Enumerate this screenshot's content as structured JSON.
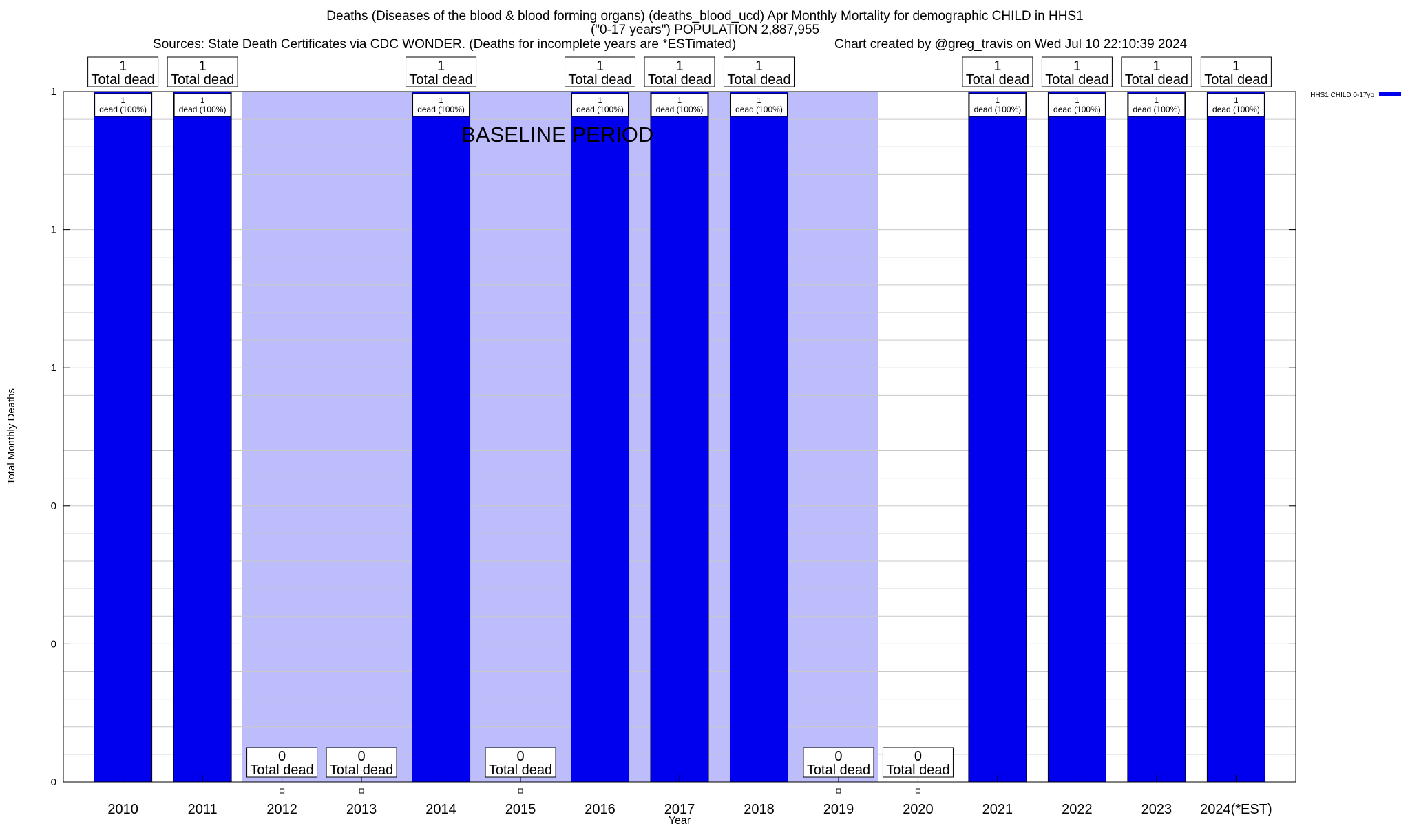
{
  "chart_data": {
    "type": "bar",
    "title": "Deaths (Diseases of the blood & blood forming organs) (deaths_blood_ucd) Apr Monthly Mortality for demographic CHILD in HHS1",
    "subtitle": "(\"0-17 years\") POPULATION 2,887,955",
    "sources": "Sources: State Death Certificates via CDC WONDER. (Deaths for incomplete years are *ESTimated)",
    "credit": "Chart created by @greg_travis on Wed Jul 10 22:10:39 2024",
    "xlabel": "Year",
    "ylabel": "Total Monthly Deaths",
    "ylim": [
      0,
      1
    ],
    "ytick_labels": [
      "0",
      "0",
      "0",
      "1",
      "1",
      "1"
    ],
    "categories": [
      "2010",
      "2011",
      "2012",
      "2013",
      "2014",
      "2015",
      "2016",
      "2017",
      "2018",
      "2019",
      "2020",
      "2021",
      "2022",
      "2023",
      "2024(*EST)"
    ],
    "series": [
      {
        "name": "HHS1 CHILD 0-17yo",
        "color": "#0000ee",
        "values": [
          1,
          1,
          0,
          0,
          1,
          0,
          1,
          1,
          1,
          0,
          0,
          1,
          1,
          1,
          1
        ]
      }
    ],
    "total_label_suffix": "Total dead",
    "inner_label_suffix": "dead (100%)",
    "baseline": {
      "label": "BASELINE PERIOD",
      "start": "2012",
      "end": "2019",
      "color": "#bdbdfc"
    },
    "legend_position": "top-right",
    "grid": true
  }
}
